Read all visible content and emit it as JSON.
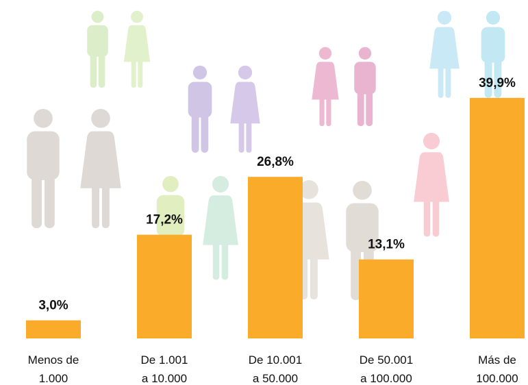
{
  "chart_data": {
    "type": "bar",
    "categories": [
      "Menos de\n1.000",
      "De 1.001\na 10.000",
      "De 10.001\na 50.000",
      "De 50.001\na 100.000",
      "Más de\n100.000"
    ],
    "values": [
      3.0,
      17.2,
      26.8,
      13.1,
      39.9
    ],
    "value_labels": [
      "3,0%",
      "17,2%",
      "26,8%",
      "13,1%",
      "39,9%"
    ],
    "color": "#fbab2a"
  }
}
